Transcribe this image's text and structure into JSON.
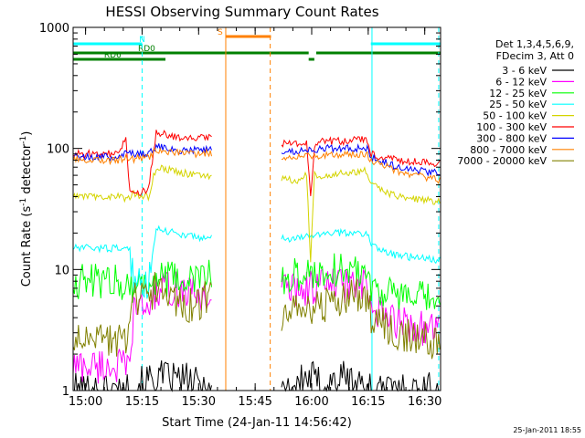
{
  "chart_data": {
    "type": "line",
    "title": "HESSI Observing Summary Count Rates",
    "xlabel": "Start Time (24-Jan-11 14:56:42)",
    "ylabel_main": "Count Rate (s",
    "ylabel_sup1": "-1",
    "ylabel_mid": " detector",
    "ylabel_sup2": "-1",
    "ylabel_end": ")",
    "x_unit": "minutes after 14:56:42",
    "xlim": [
      0,
      97.5
    ],
    "ylim": [
      1,
      1000
    ],
    "yscale": "log",
    "x_ticks": [
      {
        "label": "15:00",
        "value": 3.3
      },
      {
        "label": "15:15",
        "value": 18.3
      },
      {
        "label": "15:30",
        "value": 33.3
      },
      {
        "label": "15:45",
        "value": 48.3
      },
      {
        "label": "16:00",
        "value": 63.3
      },
      {
        "label": "16:15",
        "value": 78.3
      },
      {
        "label": "16:30",
        "value": 93.3
      }
    ],
    "y_ticks": [
      {
        "label": "1",
        "value": 1
      },
      {
        "label": "10",
        "value": 10
      },
      {
        "label": "100",
        "value": 100
      },
      {
        "label": "1000",
        "value": 1000
      }
    ],
    "legend": {
      "position": "right",
      "header": [
        "Det 1,3,4,5,6,9,",
        "FDecim 3, Att 0"
      ]
    },
    "gap": [
      37,
      55
    ],
    "series": [
      {
        "name": "3 - 6 keV",
        "color": "#000000",
        "x": [
          0,
          15,
          22,
          30,
          37,
          55,
          63,
          66,
          72,
          80,
          90,
          97
        ],
        "y": [
          1,
          1,
          1.3,
          1.2,
          1,
          1,
          1.3,
          1.1,
          1.3,
          1,
          1,
          1
        ]
      },
      {
        "name": "6 - 12 keV",
        "color": "#ff00ff",
        "x": [
          0,
          12,
          15,
          16,
          20,
          22,
          26,
          30,
          34,
          37,
          55,
          62,
          66,
          72,
          78,
          79,
          83,
          90,
          97
        ],
        "y": [
          1.6,
          1.6,
          1.5,
          4.5,
          5,
          6.5,
          7,
          6.5,
          6,
          6,
          7,
          7,
          7.5,
          7.5,
          7,
          4.5,
          4,
          3.5,
          3
        ]
      },
      {
        "name": "12 - 25 keV",
        "color": "#00ff00",
        "x": [
          0,
          12,
          15,
          16,
          20,
          22,
          30,
          37,
          55,
          60,
          66,
          72,
          78,
          79,
          86,
          97
        ],
        "y": [
          8,
          8,
          7.5,
          7.5,
          7.5,
          8.5,
          8,
          9,
          8,
          9,
          9.5,
          10,
          10,
          7.5,
          6,
          5.5
        ]
      },
      {
        "name": "25 - 50 keV",
        "color": "#00ffff",
        "x": [
          0,
          12,
          15,
          16,
          20,
          22,
          30,
          37,
          55,
          60,
          66,
          72,
          78,
          79,
          86,
          97
        ],
        "y": [
          15,
          15,
          15,
          7.5,
          8,
          22,
          19,
          18,
          18,
          18,
          20,
          20,
          20,
          16,
          13,
          12
        ]
      },
      {
        "name": "50 - 100 keV",
        "color": "#d4d400",
        "x": [
          0,
          12,
          15,
          16,
          20,
          22,
          30,
          37,
          55,
          60,
          62,
          63,
          64,
          66,
          72,
          78,
          79,
          86,
          97
        ],
        "y": [
          40,
          40,
          38,
          42,
          40,
          70,
          62,
          58,
          55,
          55,
          60,
          12,
          60,
          60,
          62,
          65,
          50,
          40,
          36
        ]
      },
      {
        "name": "100 - 300 keV",
        "color": "#ff0000",
        "x": [
          0,
          12,
          14,
          15,
          16,
          20,
          22,
          30,
          37,
          55,
          60,
          62,
          63,
          64,
          66,
          72,
          78,
          79,
          86,
          97
        ],
        "y": [
          90,
          90,
          120,
          42,
          42,
          45,
          135,
          120,
          125,
          110,
          110,
          110,
          38,
          100,
          115,
          115,
          120,
          90,
          80,
          75
        ]
      },
      {
        "name": "300 - 800 keV",
        "color": "#0000ff",
        "x": [
          0,
          12,
          15,
          16,
          20,
          22,
          30,
          37,
          55,
          60,
          66,
          72,
          78,
          79,
          86,
          97
        ],
        "y": [
          85,
          85,
          95,
          90,
          90,
          105,
          95,
          100,
          95,
          95,
          100,
          100,
          100,
          85,
          70,
          62
        ]
      },
      {
        "name": "800 - 7000 keV",
        "color": "#ff8000",
        "x": [
          0,
          12,
          15,
          16,
          20,
          22,
          30,
          37,
          55,
          60,
          66,
          72,
          78,
          79,
          86,
          97
        ],
        "y": [
          80,
          80,
          85,
          82,
          85,
          95,
          90,
          92,
          85,
          85,
          88,
          90,
          90,
          80,
          65,
          55
        ]
      },
      {
        "name": "7000 - 20000 keV",
        "color": "#808000",
        "x": [
          0,
          12,
          15,
          16,
          20,
          22,
          26,
          30,
          34,
          37,
          55,
          62,
          66,
          72,
          78,
          79,
          86,
          97
        ],
        "y": [
          2.5,
          2.5,
          3,
          5.5,
          6,
          7,
          6,
          5,
          5.5,
          6,
          4,
          5,
          5,
          6,
          6,
          4,
          3,
          2.5
        ]
      }
    ],
    "flags": [
      {
        "label": "N",
        "color": "#00ffff",
        "segments": [
          [
            0,
            18.3
          ],
          [
            79,
            97.5
          ]
        ]
      },
      {
        "label": "RD0",
        "color": "#008000",
        "segments": [
          [
            0,
            62.5
          ],
          [
            64.5,
            97.5
          ]
        ]
      },
      {
        "label": "RD6",
        "color": "#008000",
        "segments": [
          [
            0,
            24.5
          ],
          [
            62.5,
            64
          ]
        ]
      },
      {
        "label": "S",
        "color": "#ff8000",
        "segments": [
          [
            40.5,
            52.5
          ]
        ]
      }
    ],
    "markers": [
      {
        "color": "#00ffff",
        "style": "solid",
        "x": 0
      },
      {
        "color": "#00ffff",
        "style": "dashed",
        "x": 18.3
      },
      {
        "color": "#ff8000",
        "style": "dashed",
        "x": 52.3
      },
      {
        "color": "#00ffff",
        "style": "solid",
        "x": 79.3
      },
      {
        "color": "#00ffff",
        "style": "dashed",
        "x": 97.0
      },
      {
        "color": "#ff8000",
        "style": "solid",
        "x": 40.5
      }
    ],
    "grid": false
  },
  "footer_timestamp": "25-Jan-2011 18:55"
}
